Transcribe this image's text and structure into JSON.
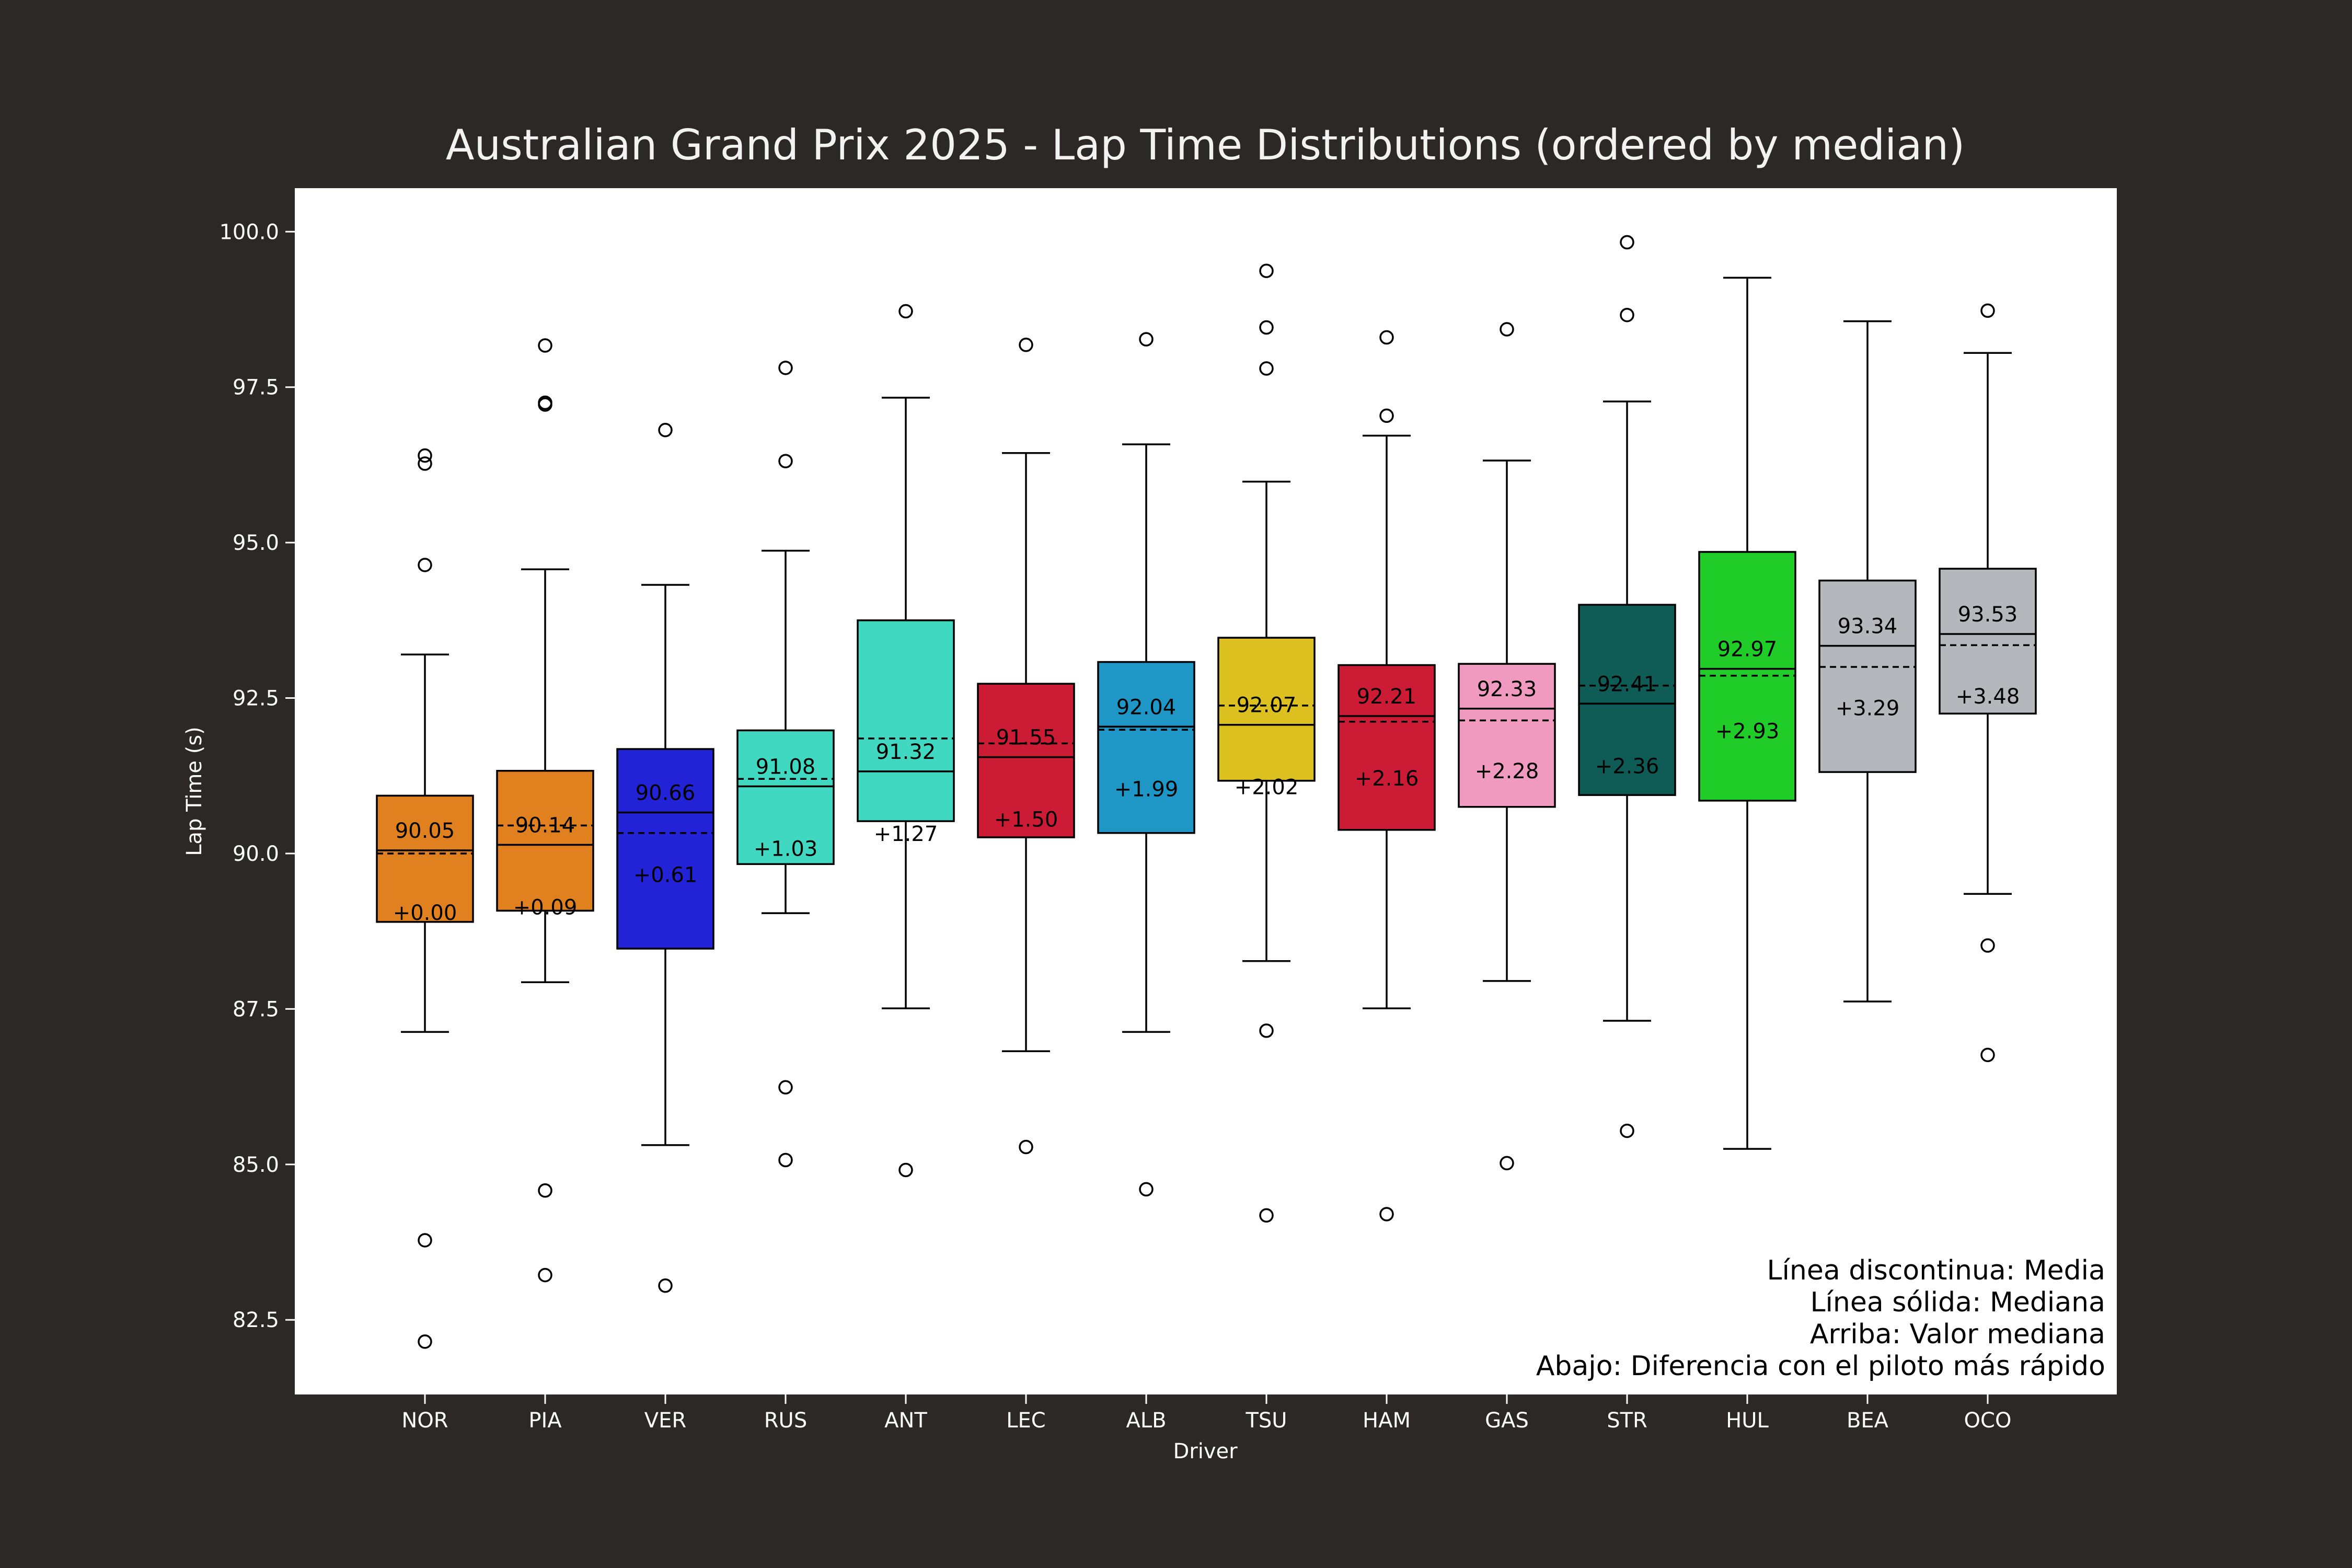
{
  "chart_data": {
    "type": "box",
    "title": "Australian Grand Prix 2025 - Lap Time Distributions (ordered by median)",
    "xlabel": "Driver",
    "ylabel": "Lap Time (s)",
    "ylim": [
      81.3,
      100.7
    ],
    "yticks": [
      "82.5",
      "85.0",
      "87.5",
      "90.0",
      "92.5",
      "95.0",
      "97.5",
      "100.0"
    ],
    "grid": false,
    "drivers": [
      {
        "name": "NOR",
        "color": "#e0801e",
        "q1": 88.9,
        "median": 90.05,
        "q3": 90.93,
        "mean": 90.0,
        "whisker_low": 87.13,
        "whisker_high": 93.2,
        "outliers": [
          96.4,
          96.27,
          94.64,
          83.78,
          82.15
        ],
        "median_label": "90.05",
        "gap_label": "+0.00"
      },
      {
        "name": "PIA",
        "color": "#e0801e",
        "q1": 89.08,
        "median": 90.14,
        "q3": 91.33,
        "mean": 90.45,
        "whisker_low": 87.93,
        "whisker_high": 94.57,
        "outliers": [
          98.17,
          97.25,
          97.22,
          84.58,
          83.22
        ],
        "median_label": "90.14",
        "gap_label": "+0.09"
      },
      {
        "name": "VER",
        "color": "#2222d6",
        "q1": 88.47,
        "median": 90.66,
        "q3": 91.68,
        "mean": 90.33,
        "whisker_low": 85.31,
        "whisker_high": 94.32,
        "outliers": [
          96.81,
          83.05
        ],
        "median_label": "90.66",
        "gap_label": "+0.61"
      },
      {
        "name": "RUS",
        "color": "#40d8c0",
        "q1": 89.83,
        "median": 91.08,
        "q3": 91.98,
        "mean": 91.2,
        "whisker_low": 89.04,
        "whisker_high": 94.87,
        "outliers": [
          97.81,
          96.31,
          86.24,
          85.07
        ],
        "median_label": "91.08",
        "gap_label": "+1.03"
      },
      {
        "name": "ANT",
        "color": "#40d8c0",
        "q1": 90.52,
        "median": 91.32,
        "q3": 93.75,
        "mean": 91.85,
        "whisker_low": 87.51,
        "whisker_high": 97.33,
        "outliers": [
          98.72,
          84.91
        ],
        "median_label": "91.32",
        "gap_label": "+1.27"
      },
      {
        "name": "LEC",
        "color": "#cc1c35",
        "q1": 90.26,
        "median": 91.55,
        "q3": 92.73,
        "mean": 91.77,
        "whisker_low": 86.82,
        "whisker_high": 96.44,
        "outliers": [
          98.18,
          85.28
        ],
        "median_label": "91.55",
        "gap_label": "+1.50"
      },
      {
        "name": "ALB",
        "color": "#1e96c6",
        "q1": 90.33,
        "median": 92.04,
        "q3": 93.08,
        "mean": 91.99,
        "whisker_low": 87.13,
        "whisker_high": 96.58,
        "outliers": [
          98.27,
          84.6
        ],
        "median_label": "92.04",
        "gap_label": "+1.99"
      },
      {
        "name": "TSU",
        "color": "#dcc020",
        "q1": 91.17,
        "median": 92.07,
        "q3": 93.47,
        "mean": 92.38,
        "whisker_low": 88.27,
        "whisker_high": 95.98,
        "outliers": [
          99.37,
          98.46,
          97.8,
          87.15,
          84.18
        ],
        "median_label": "92.07",
        "gap_label": "+2.02"
      },
      {
        "name": "HAM",
        "color": "#cc1c35",
        "q1": 90.38,
        "median": 92.21,
        "q3": 93.03,
        "mean": 92.12,
        "whisker_low": 87.51,
        "whisker_high": 96.72,
        "outliers": [
          98.3,
          97.04,
          84.2
        ],
        "median_label": "92.21",
        "gap_label": "+2.16"
      },
      {
        "name": "GAS",
        "color": "#f09ac0",
        "q1": 90.75,
        "median": 92.33,
        "q3": 93.05,
        "mean": 92.14,
        "whisker_low": 87.95,
        "whisker_high": 96.32,
        "outliers": [
          98.43,
          85.02
        ],
        "median_label": "92.33",
        "gap_label": "+2.28"
      },
      {
        "name": "STR",
        "color": "#0e5c55",
        "q1": 90.94,
        "median": 92.41,
        "q3": 94.0,
        "mean": 92.7,
        "whisker_low": 87.31,
        "whisker_high": 97.27,
        "outliers": [
          99.83,
          98.66,
          85.54
        ],
        "median_label": "92.41",
        "gap_label": "+2.36"
      },
      {
        "name": "HUL",
        "color": "#20cc28",
        "q1": 90.85,
        "median": 92.97,
        "q3": 94.85,
        "mean": 92.86,
        "whisker_low": 85.25,
        "whisker_high": 99.26,
        "outliers": [],
        "median_label": "92.97",
        "gap_label": "+2.93"
      },
      {
        "name": "BEA",
        "color": "#b4b8bc",
        "q1": 91.31,
        "median": 93.34,
        "q3": 94.39,
        "mean": 93.0,
        "whisker_low": 87.62,
        "whisker_high": 98.56,
        "outliers": [],
        "median_label": "93.34",
        "gap_label": "+3.29"
      },
      {
        "name": "OCO",
        "color": "#b4b8bc",
        "q1": 92.25,
        "median": 93.53,
        "q3": 94.58,
        "mean": 93.35,
        "whisker_low": 89.35,
        "whisker_high": 98.05,
        "outliers": [
          98.73,
          88.52,
          86.76
        ],
        "median_label": "93.53",
        "gap_label": "+3.48"
      }
    ],
    "legend": [
      "Línea discontinua: Media",
      "Línea sólida: Mediana",
      "Arriba: Valor mediana",
      "Abajo: Diferencia con el piloto más rápido"
    ],
    "legend_position": "bottom-right"
  }
}
